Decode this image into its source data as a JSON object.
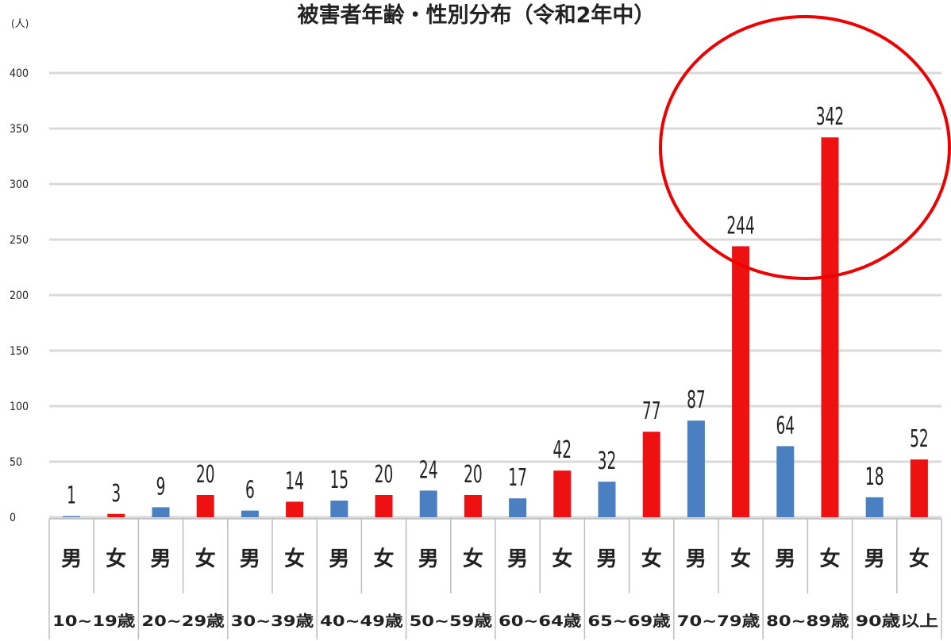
{
  "chart_data": {
    "type": "bar",
    "title": "被害者年齢・性別分布（令和2年中）",
    "unit_label": "(人)",
    "ylim": [
      0,
      400
    ],
    "yticks": [
      "0",
      "50",
      "100",
      "150",
      "200",
      "250",
      "300",
      "350",
      "400"
    ],
    "grid": true,
    "age_groups": [
      "10~19歳",
      "20~29歳",
      "30~39歳",
      "40~49歳",
      "50~59歳",
      "60~64歳",
      "65~69歳",
      "70~79歳",
      "80~89歳",
      "90歳以上"
    ],
    "sex_labels": [
      "男",
      "女"
    ],
    "series": [
      {
        "color": "#4a7fc1",
        "values": [
          1,
          9,
          6,
          15,
          24,
          17,
          32,
          87,
          64,
          18
        ]
      },
      {
        "color": "#ee1111",
        "values": [
          3,
          20,
          14,
          20,
          20,
          42,
          77,
          244,
          342,
          52
        ]
      }
    ],
    "annotation": {
      "shape": "circle",
      "color": "#ee0000"
    }
  }
}
